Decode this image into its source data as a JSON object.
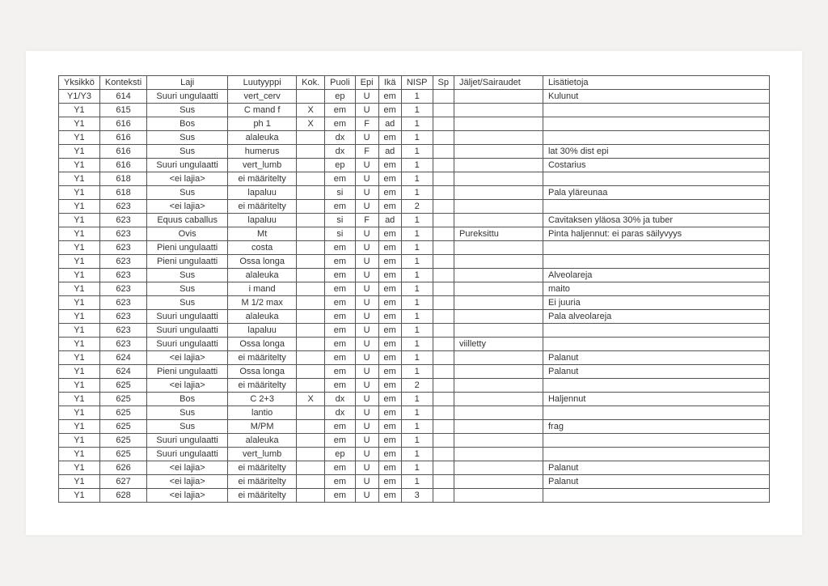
{
  "headers": {
    "yksikko": "Yksikkö",
    "konteksti": "Konteksti",
    "laji": "Laji",
    "luutyyppi": "Luutyyppi",
    "kok": "Kok.",
    "puoli": "Puoli",
    "epi": "Epi",
    "ika": "Ikä",
    "nisp": "NISP",
    "sp": "Sp",
    "jaljet": "Jäljet/Sairaudet",
    "lisatietoja": "Lisätietoja"
  },
  "rows": [
    {
      "yks": "Y1/Y3",
      "kon": "614",
      "laji": "Suuri ungulaatti",
      "luu": "vert_cerv",
      "kok": "",
      "puo": "ep",
      "epi": "U",
      "ika": "em",
      "nisp": "1",
      "sp": "",
      "jal": "",
      "lis": "Kulunut"
    },
    {
      "yks": "Y1",
      "kon": "615",
      "laji": "Sus",
      "luu": "C mand f",
      "kok": "X",
      "puo": "em",
      "epi": "U",
      "ika": "em",
      "nisp": "1",
      "sp": "",
      "jal": "",
      "lis": ""
    },
    {
      "yks": "Y1",
      "kon": "616",
      "laji": "Bos",
      "luu": "ph 1",
      "kok": "X",
      "puo": "em",
      "epi": "F",
      "ika": "ad",
      "nisp": "1",
      "sp": "",
      "jal": "",
      "lis": ""
    },
    {
      "yks": "Y1",
      "kon": "616",
      "laji": "Sus",
      "luu": "alaleuka",
      "kok": "",
      "puo": "dx",
      "epi": "U",
      "ika": "em",
      "nisp": "1",
      "sp": "",
      "jal": "",
      "lis": ""
    },
    {
      "yks": "Y1",
      "kon": "616",
      "laji": "Sus",
      "luu": "humerus",
      "kok": "",
      "puo": "dx",
      "epi": "F",
      "ika": "ad",
      "nisp": "1",
      "sp": "",
      "jal": "",
      "lis": "lat 30% dist epi"
    },
    {
      "yks": "Y1",
      "kon": "616",
      "laji": "Suuri ungulaatti",
      "luu": "vert_lumb",
      "kok": "",
      "puo": "ep",
      "epi": "U",
      "ika": "em",
      "nisp": "1",
      "sp": "",
      "jal": "",
      "lis": "Costarius"
    },
    {
      "yks": "Y1",
      "kon": "618",
      "laji": "<ei lajia>",
      "luu": "ei määritelty",
      "kok": "",
      "puo": "em",
      "epi": "U",
      "ika": "em",
      "nisp": "1",
      "sp": "",
      "jal": "",
      "lis": ""
    },
    {
      "yks": "Y1",
      "kon": "618",
      "laji": "Sus",
      "luu": "lapaluu",
      "kok": "",
      "puo": "si",
      "epi": "U",
      "ika": "em",
      "nisp": "1",
      "sp": "",
      "jal": "",
      "lis": "Pala yläreunaa"
    },
    {
      "yks": "Y1",
      "kon": "623",
      "laji": "<ei lajia>",
      "luu": "ei määritelty",
      "kok": "",
      "puo": "em",
      "epi": "U",
      "ika": "em",
      "nisp": "2",
      "sp": "",
      "jal": "",
      "lis": ""
    },
    {
      "yks": "Y1",
      "kon": "623",
      "laji": "Equus caballus",
      "luu": "lapaluu",
      "kok": "",
      "puo": "si",
      "epi": "F",
      "ika": "ad",
      "nisp": "1",
      "sp": "",
      "jal": "",
      "lis": "Cavitaksen yläosa 30% ja tuber"
    },
    {
      "yks": "Y1",
      "kon": "623",
      "laji": "Ovis",
      "luu": "Mt",
      "kok": "",
      "puo": "si",
      "epi": "U",
      "ika": "em",
      "nisp": "1",
      "sp": "",
      "jal": "Pureksittu",
      "lis": "Pinta haljennut: ei paras säilyvyys"
    },
    {
      "yks": "Y1",
      "kon": "623",
      "laji": "Pieni ungulaatti",
      "luu": "costa",
      "kok": "",
      "puo": "em",
      "epi": "U",
      "ika": "em",
      "nisp": "1",
      "sp": "",
      "jal": "",
      "lis": ""
    },
    {
      "yks": "Y1",
      "kon": "623",
      "laji": "Pieni ungulaatti",
      "luu": "Ossa longa",
      "kok": "",
      "puo": "em",
      "epi": "U",
      "ika": "em",
      "nisp": "1",
      "sp": "",
      "jal": "",
      "lis": ""
    },
    {
      "yks": "Y1",
      "kon": "623",
      "laji": "Sus",
      "luu": "alaleuka",
      "kok": "",
      "puo": "em",
      "epi": "U",
      "ika": "em",
      "nisp": "1",
      "sp": "",
      "jal": "",
      "lis": "Alveolareja"
    },
    {
      "yks": "Y1",
      "kon": "623",
      "laji": "Sus",
      "luu": "i mand",
      "kok": "",
      "puo": "em",
      "epi": "U",
      "ika": "em",
      "nisp": "1",
      "sp": "",
      "jal": "",
      "lis": "maito"
    },
    {
      "yks": "Y1",
      "kon": "623",
      "laji": "Sus",
      "luu": "M 1/2 max",
      "kok": "",
      "puo": "em",
      "epi": "U",
      "ika": "em",
      "nisp": "1",
      "sp": "",
      "jal": "",
      "lis": "Ei juuria"
    },
    {
      "yks": "Y1",
      "kon": "623",
      "laji": "Suuri ungulaatti",
      "luu": "alaleuka",
      "kok": "",
      "puo": "em",
      "epi": "U",
      "ika": "em",
      "nisp": "1",
      "sp": "",
      "jal": "",
      "lis": "Pala alveolareja"
    },
    {
      "yks": "Y1",
      "kon": "623",
      "laji": "Suuri ungulaatti",
      "luu": "lapaluu",
      "kok": "",
      "puo": "em",
      "epi": "U",
      "ika": "em",
      "nisp": "1",
      "sp": "",
      "jal": "",
      "lis": ""
    },
    {
      "yks": "Y1",
      "kon": "623",
      "laji": "Suuri ungulaatti",
      "luu": "Ossa longa",
      "kok": "",
      "puo": "em",
      "epi": "U",
      "ika": "em",
      "nisp": "1",
      "sp": "",
      "jal": "viilletty",
      "lis": ""
    },
    {
      "yks": "Y1",
      "kon": "624",
      "laji": "<ei lajia>",
      "luu": "ei määritelty",
      "kok": "",
      "puo": "em",
      "epi": "U",
      "ika": "em",
      "nisp": "1",
      "sp": "",
      "jal": "",
      "lis": "Palanut"
    },
    {
      "yks": "Y1",
      "kon": "624",
      "laji": "Pieni ungulaatti",
      "luu": "Ossa longa",
      "kok": "",
      "puo": "em",
      "epi": "U",
      "ika": "em",
      "nisp": "1",
      "sp": "",
      "jal": "",
      "lis": "Palanut"
    },
    {
      "yks": "Y1",
      "kon": "625",
      "laji": "<ei lajia>",
      "luu": "ei määritelty",
      "kok": "",
      "puo": "em",
      "epi": "U",
      "ika": "em",
      "nisp": "2",
      "sp": "",
      "jal": "",
      "lis": ""
    },
    {
      "yks": "Y1",
      "kon": "625",
      "laji": "Bos",
      "luu": "C 2+3",
      "kok": "X",
      "puo": "dx",
      "epi": "U",
      "ika": "em",
      "nisp": "1",
      "sp": "",
      "jal": "",
      "lis": "Haljennut"
    },
    {
      "yks": "Y1",
      "kon": "625",
      "laji": "Sus",
      "luu": "lantio",
      "kok": "",
      "puo": "dx",
      "epi": "U",
      "ika": "em",
      "nisp": "1",
      "sp": "",
      "jal": "",
      "lis": ""
    },
    {
      "yks": "Y1",
      "kon": "625",
      "laji": "Sus",
      "luu": "M/PM",
      "kok": "",
      "puo": "em",
      "epi": "U",
      "ika": "em",
      "nisp": "1",
      "sp": "",
      "jal": "",
      "lis": "frag"
    },
    {
      "yks": "Y1",
      "kon": "625",
      "laji": "Suuri ungulaatti",
      "luu": "alaleuka",
      "kok": "",
      "puo": "em",
      "epi": "U",
      "ika": "em",
      "nisp": "1",
      "sp": "",
      "jal": "",
      "lis": ""
    },
    {
      "yks": "Y1",
      "kon": "625",
      "laji": "Suuri ungulaatti",
      "luu": "vert_lumb",
      "kok": "",
      "puo": "ep",
      "epi": "U",
      "ika": "em",
      "nisp": "1",
      "sp": "",
      "jal": "",
      "lis": ""
    },
    {
      "yks": "Y1",
      "kon": "626",
      "laji": "<ei lajia>",
      "luu": "ei määritelty",
      "kok": "",
      "puo": "em",
      "epi": "U",
      "ika": "em",
      "nisp": "1",
      "sp": "",
      "jal": "",
      "lis": "Palanut"
    },
    {
      "yks": "Y1",
      "kon": "627",
      "laji": "<ei lajia>",
      "luu": "ei määritelty",
      "kok": "",
      "puo": "em",
      "epi": "U",
      "ika": "em",
      "nisp": "1",
      "sp": "",
      "jal": "",
      "lis": "Palanut"
    },
    {
      "yks": "Y1",
      "kon": "628",
      "laji": "<ei lajia>",
      "luu": "ei määritelty",
      "kok": "",
      "puo": "em",
      "epi": "U",
      "ika": "em",
      "nisp": "3",
      "sp": "",
      "jal": "",
      "lis": ""
    }
  ]
}
